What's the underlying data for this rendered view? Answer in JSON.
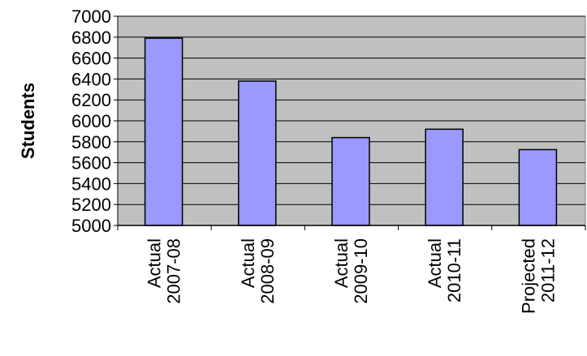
{
  "chart_data": {
    "type": "bar",
    "title": "",
    "xlabel": "",
    "ylabel": "Students",
    "ylim": [
      5000,
      7000
    ],
    "yticks": [
      5000,
      5200,
      5400,
      5600,
      5800,
      6000,
      6200,
      6400,
      6600,
      6800,
      7000
    ],
    "grid": true,
    "legend": "none",
    "categories": [
      [
        "Actual",
        "2007-08"
      ],
      [
        "Actual",
        "2008-09"
      ],
      [
        "Actual",
        "2009-10"
      ],
      [
        "Actual",
        "2010-11"
      ],
      [
        "Projected",
        "2011-12"
      ]
    ],
    "values": [
      6790,
      6380,
      5840,
      5920,
      5725
    ],
    "colors": {
      "plot_area": "#c0c0c0",
      "bar_fill": "#9999ff",
      "bar_stroke": "#000000",
      "gridline": "#000000"
    }
  }
}
